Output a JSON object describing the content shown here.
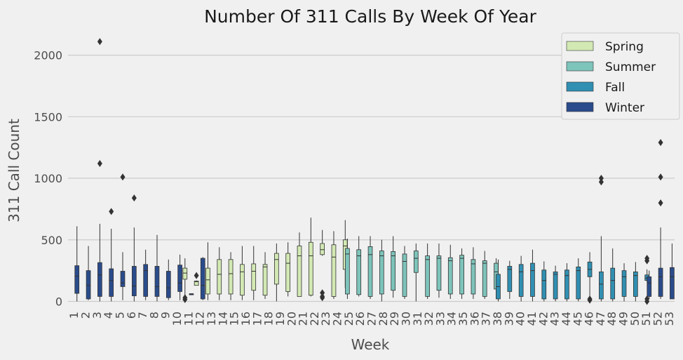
{
  "chart_data": {
    "type": "box",
    "title": "Number Of 311 Calls By Week Of Year",
    "xlabel": "Week",
    "ylabel": "311 Call Count",
    "ylim": [
      -60,
      2220
    ],
    "yticks": [
      0,
      500,
      1000,
      1500,
      2000
    ],
    "grid": "horizontal",
    "legend_position": "top-right",
    "colors": {
      "Spring": "#d3e9b4",
      "Summer": "#7dc4bb",
      "Fall": "#308fb2",
      "Winter": "#2a4c8c",
      "line": "#333333",
      "grid": "#cbcbcb",
      "background": "#f0f0f0"
    },
    "legend": [
      "Spring",
      "Summer",
      "Fall",
      "Winter"
    ],
    "categories": [
      "1",
      "2",
      "3",
      "4",
      "5",
      "6",
      "7",
      "8",
      "9",
      "10",
      "11",
      "12",
      "13",
      "14",
      "15",
      "16",
      "17",
      "18",
      "19",
      "20",
      "21",
      "22",
      "23",
      "24",
      "25",
      "26",
      "27",
      "28",
      "29",
      "30",
      "31",
      "32",
      "33",
      "34",
      "35",
      "36",
      "37",
      "38",
      "39",
      "40",
      "41",
      "42",
      "43",
      "44",
      "45",
      "46",
      "47",
      "48",
      "49",
      "50",
      "51",
      "52",
      "53"
    ],
    "boxes": [
      {
        "week": "1",
        "season": "Winter",
        "min": 0,
        "q1": 65,
        "median": 205,
        "q3": 290,
        "max": 610,
        "outliers": []
      },
      {
        "week": "2",
        "season": "Winter",
        "min": 10,
        "q1": 20,
        "median": 130,
        "q3": 250,
        "max": 450,
        "outliers": []
      },
      {
        "week": "3",
        "season": "Winter",
        "min": 0,
        "q1": 40,
        "median": 215,
        "q3": 315,
        "max": 630,
        "outliers": [
          1120,
          2110
        ]
      },
      {
        "week": "4",
        "season": "Winter",
        "min": 0,
        "q1": 40,
        "median": 170,
        "q3": 265,
        "max": 590,
        "outliers": [
          730
        ]
      },
      {
        "week": "5",
        "season": "Winter",
        "min": 10,
        "q1": 120,
        "median": 150,
        "q3": 245,
        "max": 400,
        "outliers": [
          1010
        ]
      },
      {
        "week": "6",
        "season": "Winter",
        "min": 0,
        "q1": 45,
        "median": 125,
        "q3": 285,
        "max": 600,
        "outliers": [
          840
        ]
      },
      {
        "week": "7",
        "season": "Winter",
        "min": 10,
        "q1": 40,
        "median": 250,
        "q3": 300,
        "max": 420,
        "outliers": []
      },
      {
        "week": "8",
        "season": "Winter",
        "min": 0,
        "q1": 40,
        "median": 120,
        "q3": 285,
        "max": 540,
        "outliers": []
      },
      {
        "week": "9",
        "season": "Winter",
        "min": 10,
        "q1": 30,
        "median": 110,
        "q3": 245,
        "max": 340,
        "outliers": []
      },
      {
        "week": "10",
        "season": "Winter",
        "min": 10,
        "q1": 80,
        "median": 150,
        "q3": 295,
        "max": 380,
        "outliers": []
      },
      {
        "week": "11",
        "season": "Winter",
        "min": 62,
        "q1": 62,
        "median": 62,
        "q3": 62,
        "max": 62,
        "outliers": []
      },
      {
        "week": "11",
        "season": "Spring",
        "min": 40,
        "q1": 180,
        "median": 230,
        "q3": 270,
        "max": 350,
        "outliers": [
          15,
          30
        ]
      },
      {
        "week": "12",
        "season": "Winter",
        "min": 10,
        "q1": 20,
        "median": 130,
        "q3": 350,
        "max": 360,
        "outliers": []
      },
      {
        "week": "12",
        "season": "Spring",
        "min": 130,
        "q1": 130,
        "median": 160,
        "q3": 165,
        "max": 170,
        "outliers": [
          210
        ]
      },
      {
        "week": "13",
        "season": "Spring",
        "min": 10,
        "q1": 60,
        "median": 175,
        "q3": 270,
        "max": 480,
        "outliers": []
      },
      {
        "week": "14",
        "season": "Spring",
        "min": 10,
        "q1": 60,
        "median": 220,
        "q3": 340,
        "max": 440,
        "outliers": []
      },
      {
        "week": "15",
        "season": "Spring",
        "min": 10,
        "q1": 60,
        "median": 225,
        "q3": 340,
        "max": 400,
        "outliers": []
      },
      {
        "week": "16",
        "season": "Spring",
        "min": 10,
        "q1": 50,
        "median": 240,
        "q3": 300,
        "max": 450,
        "outliers": []
      },
      {
        "week": "17",
        "season": "Spring",
        "min": 10,
        "q1": 90,
        "median": 245,
        "q3": 305,
        "max": 450,
        "outliers": []
      },
      {
        "week": "18",
        "season": "Spring",
        "min": 20,
        "q1": 50,
        "median": 280,
        "q3": 300,
        "max": 400,
        "outliers": []
      },
      {
        "week": "19",
        "season": "Spring",
        "min": 0,
        "q1": 140,
        "median": 340,
        "q3": 390,
        "max": 470,
        "outliers": []
      },
      {
        "week": "20",
        "season": "Spring",
        "min": 40,
        "q1": 80,
        "median": 310,
        "q3": 390,
        "max": 480,
        "outliers": []
      },
      {
        "week": "21",
        "season": "Spring",
        "min": 40,
        "q1": 40,
        "median": 370,
        "q3": 450,
        "max": 560,
        "outliers": []
      },
      {
        "week": "22",
        "season": "Spring",
        "min": 40,
        "q1": 50,
        "median": 370,
        "q3": 480,
        "max": 680,
        "outliers": []
      },
      {
        "week": "23",
        "season": "Spring",
        "min": 370,
        "q1": 380,
        "median": 420,
        "q3": 470,
        "max": 580,
        "outliers": [
          30,
          40,
          70
        ]
      },
      {
        "week": "24",
        "season": "Spring",
        "min": 20,
        "q1": 40,
        "median": 360,
        "q3": 460,
        "max": 570,
        "outliers": []
      },
      {
        "week": "25",
        "season": "Spring",
        "min": 110,
        "q1": 260,
        "median": 450,
        "q3": 500,
        "max": 660,
        "outliers": []
      },
      {
        "week": "25",
        "season": "Summer",
        "min": 20,
        "q1": 60,
        "median": 385,
        "q3": 430,
        "max": 510,
        "outliers": []
      },
      {
        "week": "26",
        "season": "Summer",
        "min": 40,
        "q1": 55,
        "median": 370,
        "q3": 420,
        "max": 530,
        "outliers": []
      },
      {
        "week": "27",
        "season": "Summer",
        "min": 20,
        "q1": 40,
        "median": 380,
        "q3": 445,
        "max": 530,
        "outliers": []
      },
      {
        "week": "28",
        "season": "Summer",
        "min": 0,
        "q1": 60,
        "median": 370,
        "q3": 410,
        "max": 500,
        "outliers": []
      },
      {
        "week": "29",
        "season": "Summer",
        "min": 30,
        "q1": 90,
        "median": 370,
        "q3": 405,
        "max": 530,
        "outliers": []
      },
      {
        "week": "30",
        "season": "Summer",
        "min": 20,
        "q1": 40,
        "median": 325,
        "q3": 385,
        "max": 450,
        "outliers": []
      },
      {
        "week": "31",
        "season": "Summer",
        "min": 0,
        "q1": 235,
        "median": 350,
        "q3": 410,
        "max": 470,
        "outliers": []
      },
      {
        "week": "32",
        "season": "Summer",
        "min": 20,
        "q1": 40,
        "median": 340,
        "q3": 370,
        "max": 470,
        "outliers": []
      },
      {
        "week": "33",
        "season": "Summer",
        "min": 30,
        "q1": 90,
        "median": 350,
        "q3": 370,
        "max": 470,
        "outliers": []
      },
      {
        "week": "34",
        "season": "Summer",
        "min": 20,
        "q1": 60,
        "median": 330,
        "q3": 355,
        "max": 460,
        "outliers": []
      },
      {
        "week": "35",
        "season": "Summer",
        "min": 20,
        "q1": 60,
        "median": 350,
        "q3": 375,
        "max": 430,
        "outliers": []
      },
      {
        "week": "36",
        "season": "Summer",
        "min": 20,
        "q1": 60,
        "median": 305,
        "q3": 340,
        "max": 440,
        "outliers": []
      },
      {
        "week": "37",
        "season": "Summer",
        "min": 20,
        "q1": 40,
        "median": 310,
        "q3": 330,
        "max": 410,
        "outliers": []
      },
      {
        "week": "38",
        "season": "Summer",
        "min": 20,
        "q1": 100,
        "median": 240,
        "q3": 310,
        "max": 350,
        "outliers": []
      },
      {
        "week": "38",
        "season": "Fall",
        "min": 0,
        "q1": 20,
        "median": 120,
        "q3": 220,
        "max": 340,
        "outliers": []
      },
      {
        "week": "39",
        "season": "Fall",
        "min": 20,
        "q1": 80,
        "median": 260,
        "q3": 285,
        "max": 330,
        "outliers": []
      },
      {
        "week": "40",
        "season": "Fall",
        "min": 0,
        "q1": 40,
        "median": 240,
        "q3": 300,
        "max": 370,
        "outliers": []
      },
      {
        "week": "41",
        "season": "Fall",
        "min": 0,
        "q1": 40,
        "median": 250,
        "q3": 310,
        "max": 420,
        "outliers": []
      },
      {
        "week": "42",
        "season": "Fall",
        "min": 0,
        "q1": 20,
        "median": 170,
        "q3": 255,
        "max": 325,
        "outliers": []
      },
      {
        "week": "43",
        "season": "Fall",
        "min": 0,
        "q1": 20,
        "median": 220,
        "q3": 240,
        "max": 290,
        "outliers": []
      },
      {
        "week": "44",
        "season": "Fall",
        "min": 0,
        "q1": 20,
        "median": 210,
        "q3": 255,
        "max": 310,
        "outliers": []
      },
      {
        "week": "45",
        "season": "Fall",
        "min": 0,
        "q1": 20,
        "median": 250,
        "q3": 280,
        "max": 350,
        "outliers": []
      },
      {
        "week": "46",
        "season": "Fall",
        "min": 0,
        "q1": 200,
        "median": 260,
        "q3": 320,
        "max": 400,
        "outliers": [
          10,
          20
        ]
      },
      {
        "week": "47",
        "season": "Fall",
        "min": 0,
        "q1": 20,
        "median": 140,
        "q3": 240,
        "max": 530,
        "outliers": [
          970,
          1000
        ]
      },
      {
        "week": "48",
        "season": "Fall",
        "min": 0,
        "q1": 20,
        "median": 170,
        "q3": 270,
        "max": 430,
        "outliers": []
      },
      {
        "week": "49",
        "season": "Fall",
        "min": 0,
        "q1": 40,
        "median": 200,
        "q3": 250,
        "max": 310,
        "outliers": []
      },
      {
        "week": "50",
        "season": "Fall",
        "min": 0,
        "q1": 40,
        "median": 210,
        "q3": 240,
        "max": 320,
        "outliers": []
      },
      {
        "week": "51",
        "season": "Fall",
        "min": 160,
        "q1": 170,
        "median": 190,
        "q3": 215,
        "max": 260,
        "outliers": [
          0,
          20,
          330,
          350
        ]
      },
      {
        "week": "51",
        "season": "Winter",
        "min": 20,
        "q1": 40,
        "median": 150,
        "q3": 200,
        "max": 250,
        "outliers": []
      },
      {
        "week": "52",
        "season": "Winter",
        "min": 20,
        "q1": 40,
        "median": 200,
        "q3": 270,
        "max": 600,
        "outliers": [
          800,
          1010,
          1290
        ]
      },
      {
        "week": "53",
        "season": "Winter",
        "min": 20,
        "q1": 20,
        "median": 200,
        "q3": 275,
        "max": 470,
        "outliers": []
      }
    ]
  }
}
